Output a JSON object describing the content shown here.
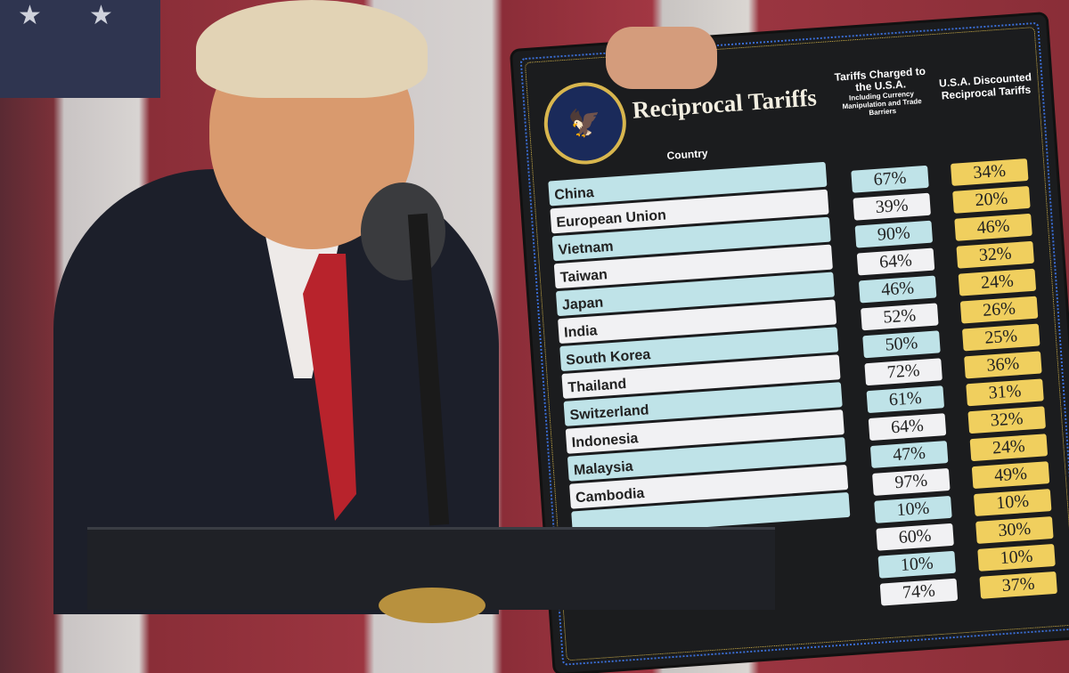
{
  "board": {
    "title": "Reciprocal Tariffs",
    "seal_text": "Seal of the President of the United States",
    "col_country": "Country",
    "col_charged": "Tariffs Charged to the U.S.A.",
    "col_charged_sub": "Including Currency Manipulation and Trade Barriers",
    "col_reciprocal": "U.S.A. Discounted Reciprocal Tariffs",
    "colors": {
      "board": "#1b1c1e",
      "blue_row": "#bfe3e8",
      "white_row": "#f1f1f3",
      "gold": "#f0cf5e"
    },
    "rows": [
      {
        "country": "China",
        "charged": "67%",
        "reciprocal": "34%"
      },
      {
        "country": "European Union",
        "charged": "39%",
        "reciprocal": "20%"
      },
      {
        "country": "Vietnam",
        "charged": "90%",
        "reciprocal": "46%"
      },
      {
        "country": "Taiwan",
        "charged": "64%",
        "reciprocal": "32%"
      },
      {
        "country": "Japan",
        "charged": "46%",
        "reciprocal": "24%"
      },
      {
        "country": "India",
        "charged": "52%",
        "reciprocal": "26%"
      },
      {
        "country": "South Korea",
        "charged": "50%",
        "reciprocal": "25%"
      },
      {
        "country": "Thailand",
        "charged": "72%",
        "reciprocal": "36%"
      },
      {
        "country": "Switzerland",
        "charged": "61%",
        "reciprocal": "31%"
      },
      {
        "country": "Indonesia",
        "charged": "64%",
        "reciprocal": "32%"
      },
      {
        "country": "Malaysia",
        "charged": "47%",
        "reciprocal": "24%"
      },
      {
        "country": "Cambodia",
        "charged": "97%",
        "reciprocal": "49%"
      },
      {
        "country": "",
        "charged": "10%",
        "reciprocal": "10%"
      },
      {
        "country": "",
        "charged": "60%",
        "reciprocal": "30%"
      },
      {
        "country": "",
        "charged": "10%",
        "reciprocal": "10%"
      },
      {
        "country": "",
        "charged": "74%",
        "reciprocal": "37%"
      }
    ]
  }
}
